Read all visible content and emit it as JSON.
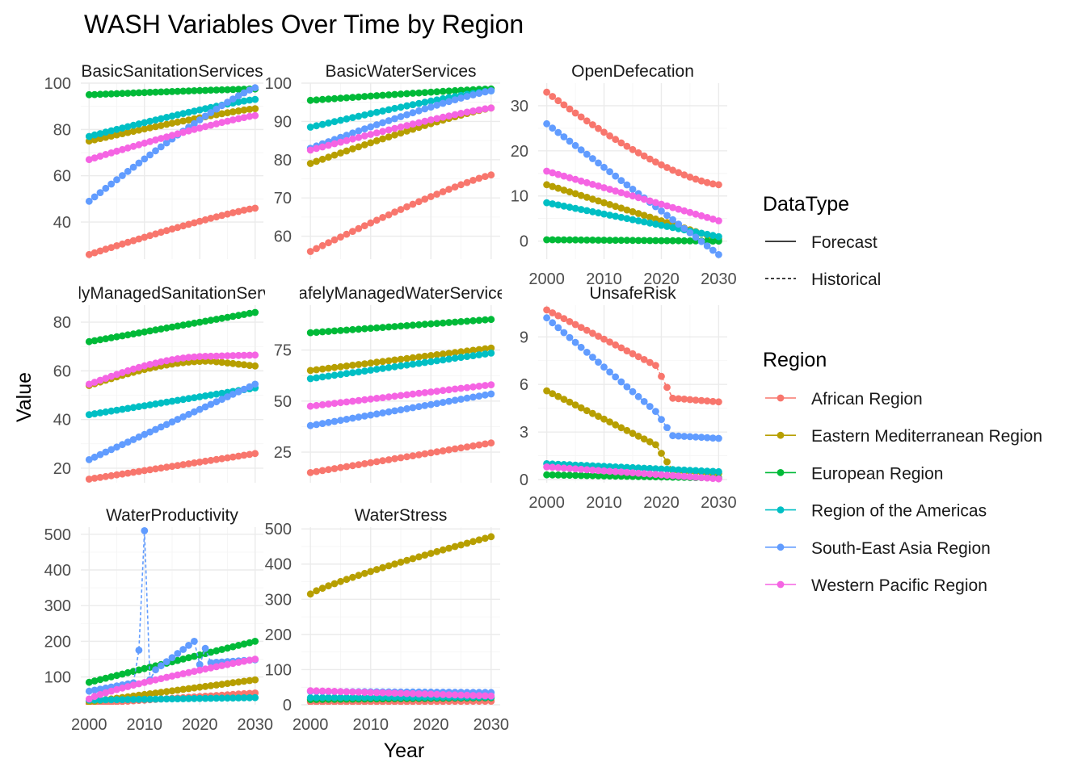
{
  "chart_data": {
    "type": "line",
    "title": "WASH Variables Over Time by Region",
    "xlabel": "Year",
    "ylabel": "Value",
    "grid": true,
    "legend_position": "right",
    "x_breaks": [
      2000,
      2010,
      2020,
      2030
    ],
    "legends": {
      "datatype": {
        "title": "DataType",
        "entries": [
          {
            "label": "Forecast",
            "linetype": "solid"
          },
          {
            "label": "Historical",
            "linetype": "dashed"
          }
        ]
      },
      "region": {
        "title": "Region",
        "entries": [
          {
            "label": "African Region",
            "color": "#F8766D"
          },
          {
            "label": "Eastern Mediterranean Region",
            "color": "#B79F00"
          },
          {
            "label": "European Region",
            "color": "#00BA38"
          },
          {
            "label": "Region of the Americas",
            "color": "#00BFC4"
          },
          {
            "label": "South-East Asia Region",
            "color": "#619CFF"
          },
          {
            "label": "Western Pacific Region",
            "color": "#F564E3"
          }
        ]
      }
    },
    "panels": [
      {
        "strip": "BasicSanitationServices",
        "ylim": [
          24,
          100
        ],
        "y_breaks": [
          40,
          60,
          80,
          100
        ],
        "series": [
          {
            "region": "African Region",
            "start": 26,
            "end": 46
          },
          {
            "region": "Eastern Mediterranean Region",
            "start": 75,
            "end": 89
          },
          {
            "region": "European Region",
            "start": 95,
            "end": 97.5
          },
          {
            "region": "Region of the Americas",
            "start": 77,
            "end": 93
          },
          {
            "region": "South-East Asia Region",
            "start": 49,
            "end": 98
          },
          {
            "region": "Western Pacific Region",
            "start": 67,
            "end": 86
          }
        ]
      },
      {
        "strip": "BasicWaterServices",
        "ylim": [
          54,
          100
        ],
        "y_breaks": [
          60,
          70,
          80,
          90,
          100
        ],
        "series": [
          {
            "region": "African Region",
            "start": 56,
            "end": 76
          },
          {
            "region": "Eastern Mediterranean Region",
            "start": 79,
            "end": 93.5
          },
          {
            "region": "European Region",
            "start": 95.5,
            "end": 98.5
          },
          {
            "region": "Region of the Americas",
            "start": 88.5,
            "end": 98
          },
          {
            "region": "South-East Asia Region",
            "start": 83,
            "end": 98
          },
          {
            "region": "Western Pacific Region",
            "start": 82.5,
            "end": 93.5
          }
        ]
      },
      {
        "strip": "OpenDefecation",
        "ylim": [
          -4,
          35
        ],
        "y_breaks": [
          0,
          10,
          20,
          30
        ],
        "series": [
          {
            "region": "African Region",
            "start": 33,
            "end": 12.5
          },
          {
            "region": "Eastern Mediterranean Region",
            "start": 12.5,
            "end": 0.5
          },
          {
            "region": "European Region",
            "start": 0.3,
            "end": 0
          },
          {
            "region": "Region of the Americas",
            "start": 8.5,
            "end": 1
          },
          {
            "region": "South-East Asia Region",
            "start": 26,
            "end": -3
          },
          {
            "region": "Western Pacific Region",
            "start": 15.5,
            "end": 4.5
          }
        ]
      },
      {
        "strip": "SafelyManagedSanitationServices",
        "ylim": [
          14,
          87
        ],
        "y_breaks": [
          20,
          40,
          60,
          80
        ],
        "series": [
          {
            "region": "African Region",
            "start": 15.5,
            "end": 26
          },
          {
            "region": "Eastern Mediterranean Region",
            "start": 54,
            "mid": 64,
            "end": 62
          },
          {
            "region": "European Region",
            "start": 72,
            "end": 84
          },
          {
            "region": "Region of the Americas",
            "start": 42,
            "end": 53
          },
          {
            "region": "South-East Asia Region",
            "start": 23.5,
            "end": 54.5
          },
          {
            "region": "Western Pacific Region",
            "start": 54.5,
            "mid": 66,
            "end": 66.5
          }
        ]
      },
      {
        "strip": "SafelyManagedWaterServices",
        "ylim": [
          10,
          97
        ],
        "y_breaks": [
          25,
          50,
          75
        ],
        "series": [
          {
            "region": "African Region",
            "start": 15,
            "end": 29.5
          },
          {
            "region": "Eastern Mediterranean Region",
            "start": 65,
            "end": 76
          },
          {
            "region": "European Region",
            "start": 83.5,
            "end": 90
          },
          {
            "region": "Region of the Americas",
            "start": 61,
            "end": 73.5
          },
          {
            "region": "South-East Asia Region",
            "start": 38,
            "end": 53.5
          },
          {
            "region": "Western Pacific Region",
            "start": 47.5,
            "end": 58
          }
        ]
      },
      {
        "strip": "UnsafeRisk",
        "ylim": [
          -0.2,
          11
        ],
        "y_breaks": [
          0,
          3,
          6,
          9
        ],
        "series": [
          {
            "region": "African Region",
            "start": 10.7,
            "pre_drop": 7.2,
            "end": 4.9
          },
          {
            "region": "Eastern Mediterranean Region",
            "start": 5.6,
            "pre_drop": 2.2,
            "end": 0.4
          },
          {
            "region": "European Region",
            "start": 0.3,
            "end": 0.1
          },
          {
            "region": "Region of the Americas",
            "start": 1.0,
            "end": 0.5
          },
          {
            "region": "South-East Asia Region",
            "start": 10.2,
            "pre_drop": 4.3,
            "end": 2.6
          },
          {
            "region": "Western Pacific Region",
            "start": 0.8,
            "end": 0.05
          }
        ]
      },
      {
        "strip": "WaterProductivity",
        "ylim": [
          22,
          520
        ],
        "y_breaks": [
          100,
          200,
          300,
          400,
          500
        ],
        "series": [
          {
            "region": "African Region",
            "start": 25,
            "end": 55
          },
          {
            "region": "Eastern Mediterranean Region",
            "start": 30,
            "end": 92
          },
          {
            "region": "European Region",
            "start": 85,
            "end": 200
          },
          {
            "region": "Region of the Americas",
            "start": 35,
            "end": 42
          },
          {
            "region": "South-East Asia Region",
            "start": 60,
            "end": 148,
            "spike_year": 2010,
            "spike_value": 510,
            "peak_2019": 200
          },
          {
            "region": "Western Pacific Region",
            "start": 38,
            "end": 150
          }
        ]
      },
      {
        "strip": "WaterStress",
        "ylim": [
          0,
          505
        ],
        "y_breaks": [
          0,
          100,
          200,
          300,
          400,
          500
        ],
        "series": [
          {
            "region": "African Region",
            "start": 8,
            "end": 10
          },
          {
            "region": "Eastern Mediterranean Region",
            "start": 315,
            "end": 478
          },
          {
            "region": "European Region",
            "start": 15,
            "end": 20
          },
          {
            "region": "Region of the Americas",
            "start": 20,
            "end": 22
          },
          {
            "region": "South-East Asia Region",
            "start": 38,
            "end": 35
          },
          {
            "region": "Western Pacific Region",
            "start": 40,
            "end": 25
          }
        ]
      }
    ]
  }
}
